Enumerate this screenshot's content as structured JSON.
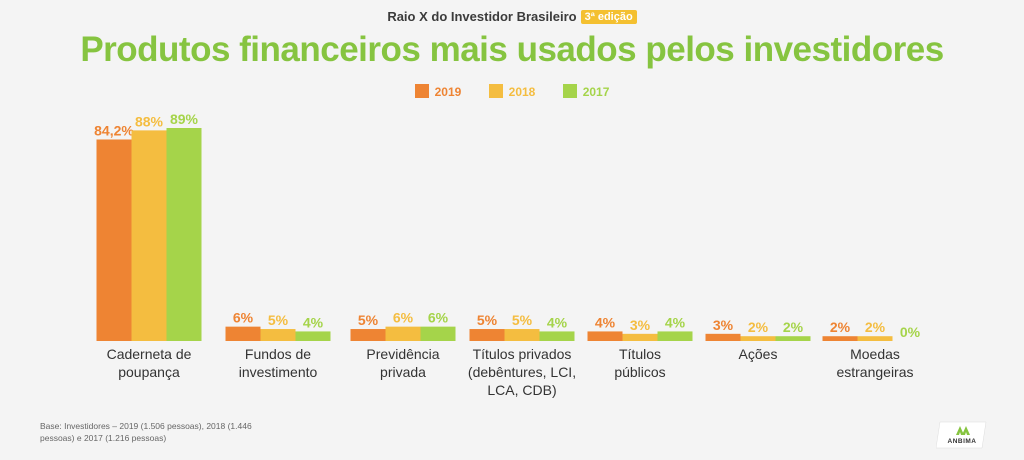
{
  "header": {
    "supertitle": "Raio X do Investidor Brasileiro",
    "edition": "3ª edição",
    "title": "Produtos financeiros mais usados pelos investidores"
  },
  "footnote": "Base: Investidores – 2019 (1.506 pessoas), 2018 (1.446 pessoas) e 2017 (1.216 pessoas)",
  "logo": {
    "text": "ANBIMA",
    "icon": "anbima-logo-icon"
  },
  "colors": {
    "s2019": "#ee8433",
    "s2018": "#f4bd40",
    "s2017": "#a5d44a",
    "title": "#86c440"
  },
  "chart_data": {
    "type": "bar",
    "categories": [
      [
        "Caderneta de",
        "poupança"
      ],
      [
        "Fundos de",
        "investimento"
      ],
      [
        "Previdência",
        "privada"
      ],
      [
        "Títulos privados",
        "(debêntures, LCI,",
        "LCA, CDB)"
      ],
      [
        "Títulos",
        "públicos"
      ],
      [
        "Ações"
      ],
      [
        "Moedas",
        "estrangeiras"
      ]
    ],
    "series": [
      {
        "name": "2019",
        "values": [
          84.2,
          6,
          5,
          5,
          4,
          3,
          2
        ],
        "labels": [
          "84,2%",
          "6%",
          "5%",
          "5%",
          "4%",
          "3%",
          "2%"
        ]
      },
      {
        "name": "2018",
        "values": [
          88,
          5,
          6,
          5,
          3,
          2,
          2
        ],
        "labels": [
          "88%",
          "5%",
          "6%",
          "5%",
          "3%",
          "2%",
          "2%"
        ]
      },
      {
        "name": "2017",
        "values": [
          89,
          4,
          6,
          4,
          4,
          2,
          0
        ],
        "labels": [
          "89%",
          "4%",
          "6%",
          "4%",
          "4%",
          "2%",
          "0%"
        ]
      }
    ],
    "ylim": [
      0,
      89
    ],
    "legend_position": "top-center",
    "grid": false
  }
}
